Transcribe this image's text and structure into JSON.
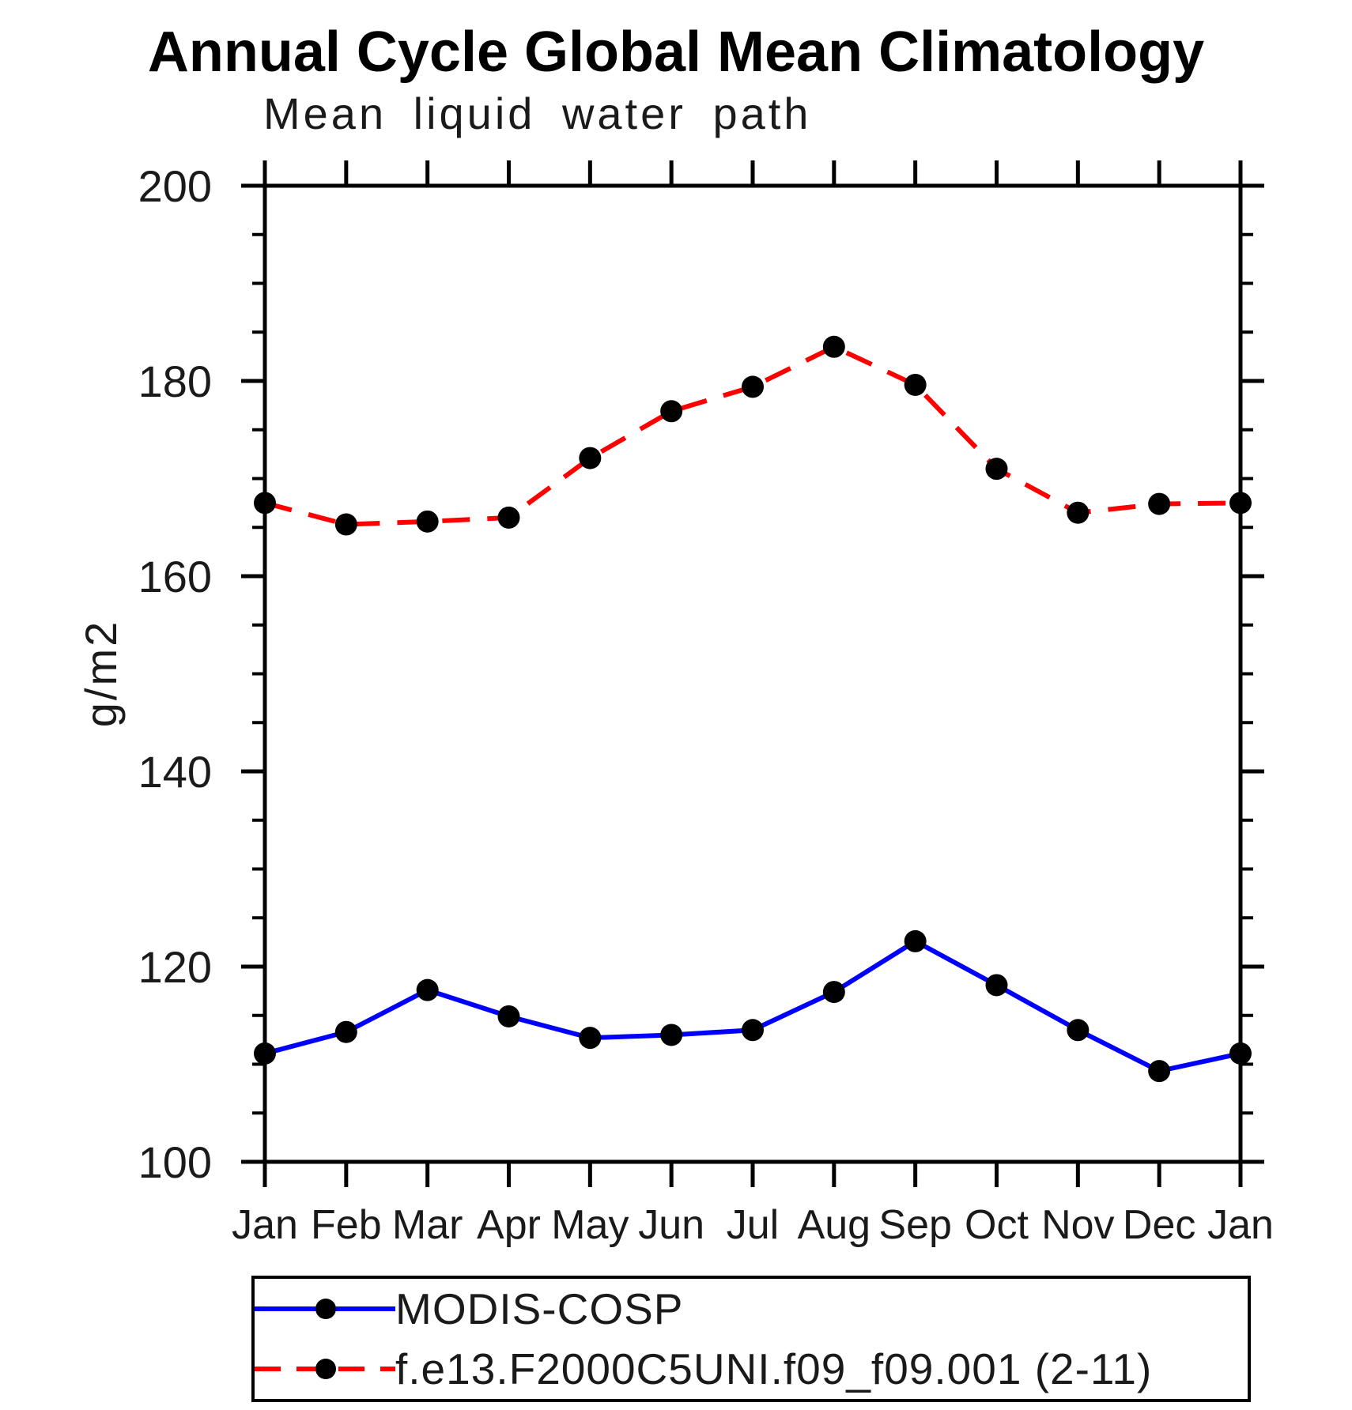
{
  "page": {
    "background_color": "#ffffff",
    "frame_color": "#000000",
    "text_color": "#1a1a1a"
  },
  "chart_data": {
    "type": "line",
    "title": "Annual Cycle Global Mean Climatology",
    "subtitle": "Mean liquid water path",
    "ylabel": "g/m2",
    "xlabel": "",
    "x_categories": [
      "Jan",
      "Feb",
      "Mar",
      "Apr",
      "May",
      "Jun",
      "Jul",
      "Aug",
      "Sep",
      "Oct",
      "Nov",
      "Dec",
      "Jan"
    ],
    "ylim": [
      100,
      200
    ],
    "y_major_ticks": [
      100,
      120,
      140,
      160,
      180,
      200
    ],
    "y_tick_labels": [
      "100",
      "120",
      "140",
      "160",
      "180",
      "200"
    ],
    "y_minor_step": 5,
    "grid": false,
    "tick_style": "outward",
    "series": [
      {
        "name": "MODIS-COSP",
        "color": "#0000ff",
        "line_style": "solid",
        "marker": "circle",
        "marker_color": "#000000",
        "values": [
          111.1,
          113.3,
          117.6,
          114.9,
          112.7,
          113.0,
          113.5,
          117.4,
          122.6,
          118.1,
          113.5,
          109.3,
          111.1
        ]
      },
      {
        "name": "f.e13.F2000C5UNI.f09_f09.001 (2-11)",
        "color": "#ff0000",
        "line_style": "dashed",
        "marker": "circle",
        "marker_color": "#000000",
        "values": [
          167.5,
          165.3,
          165.6,
          166.0,
          172.1,
          176.9,
          179.4,
          183.5,
          179.6,
          171.0,
          166.5,
          167.4,
          167.5
        ]
      }
    ],
    "legend_position": "bottom-left-box"
  },
  "legend": {
    "items": [
      {
        "label": "MODIS-COSP",
        "color": "#0000ff",
        "line_style": "solid",
        "marker_color": "#000000"
      },
      {
        "label": "f.e13.F2000C5UNI.f09_f09.001 (2-11)",
        "color": "#ff0000",
        "line_style": "dashed",
        "marker_color": "#000000"
      }
    ]
  }
}
